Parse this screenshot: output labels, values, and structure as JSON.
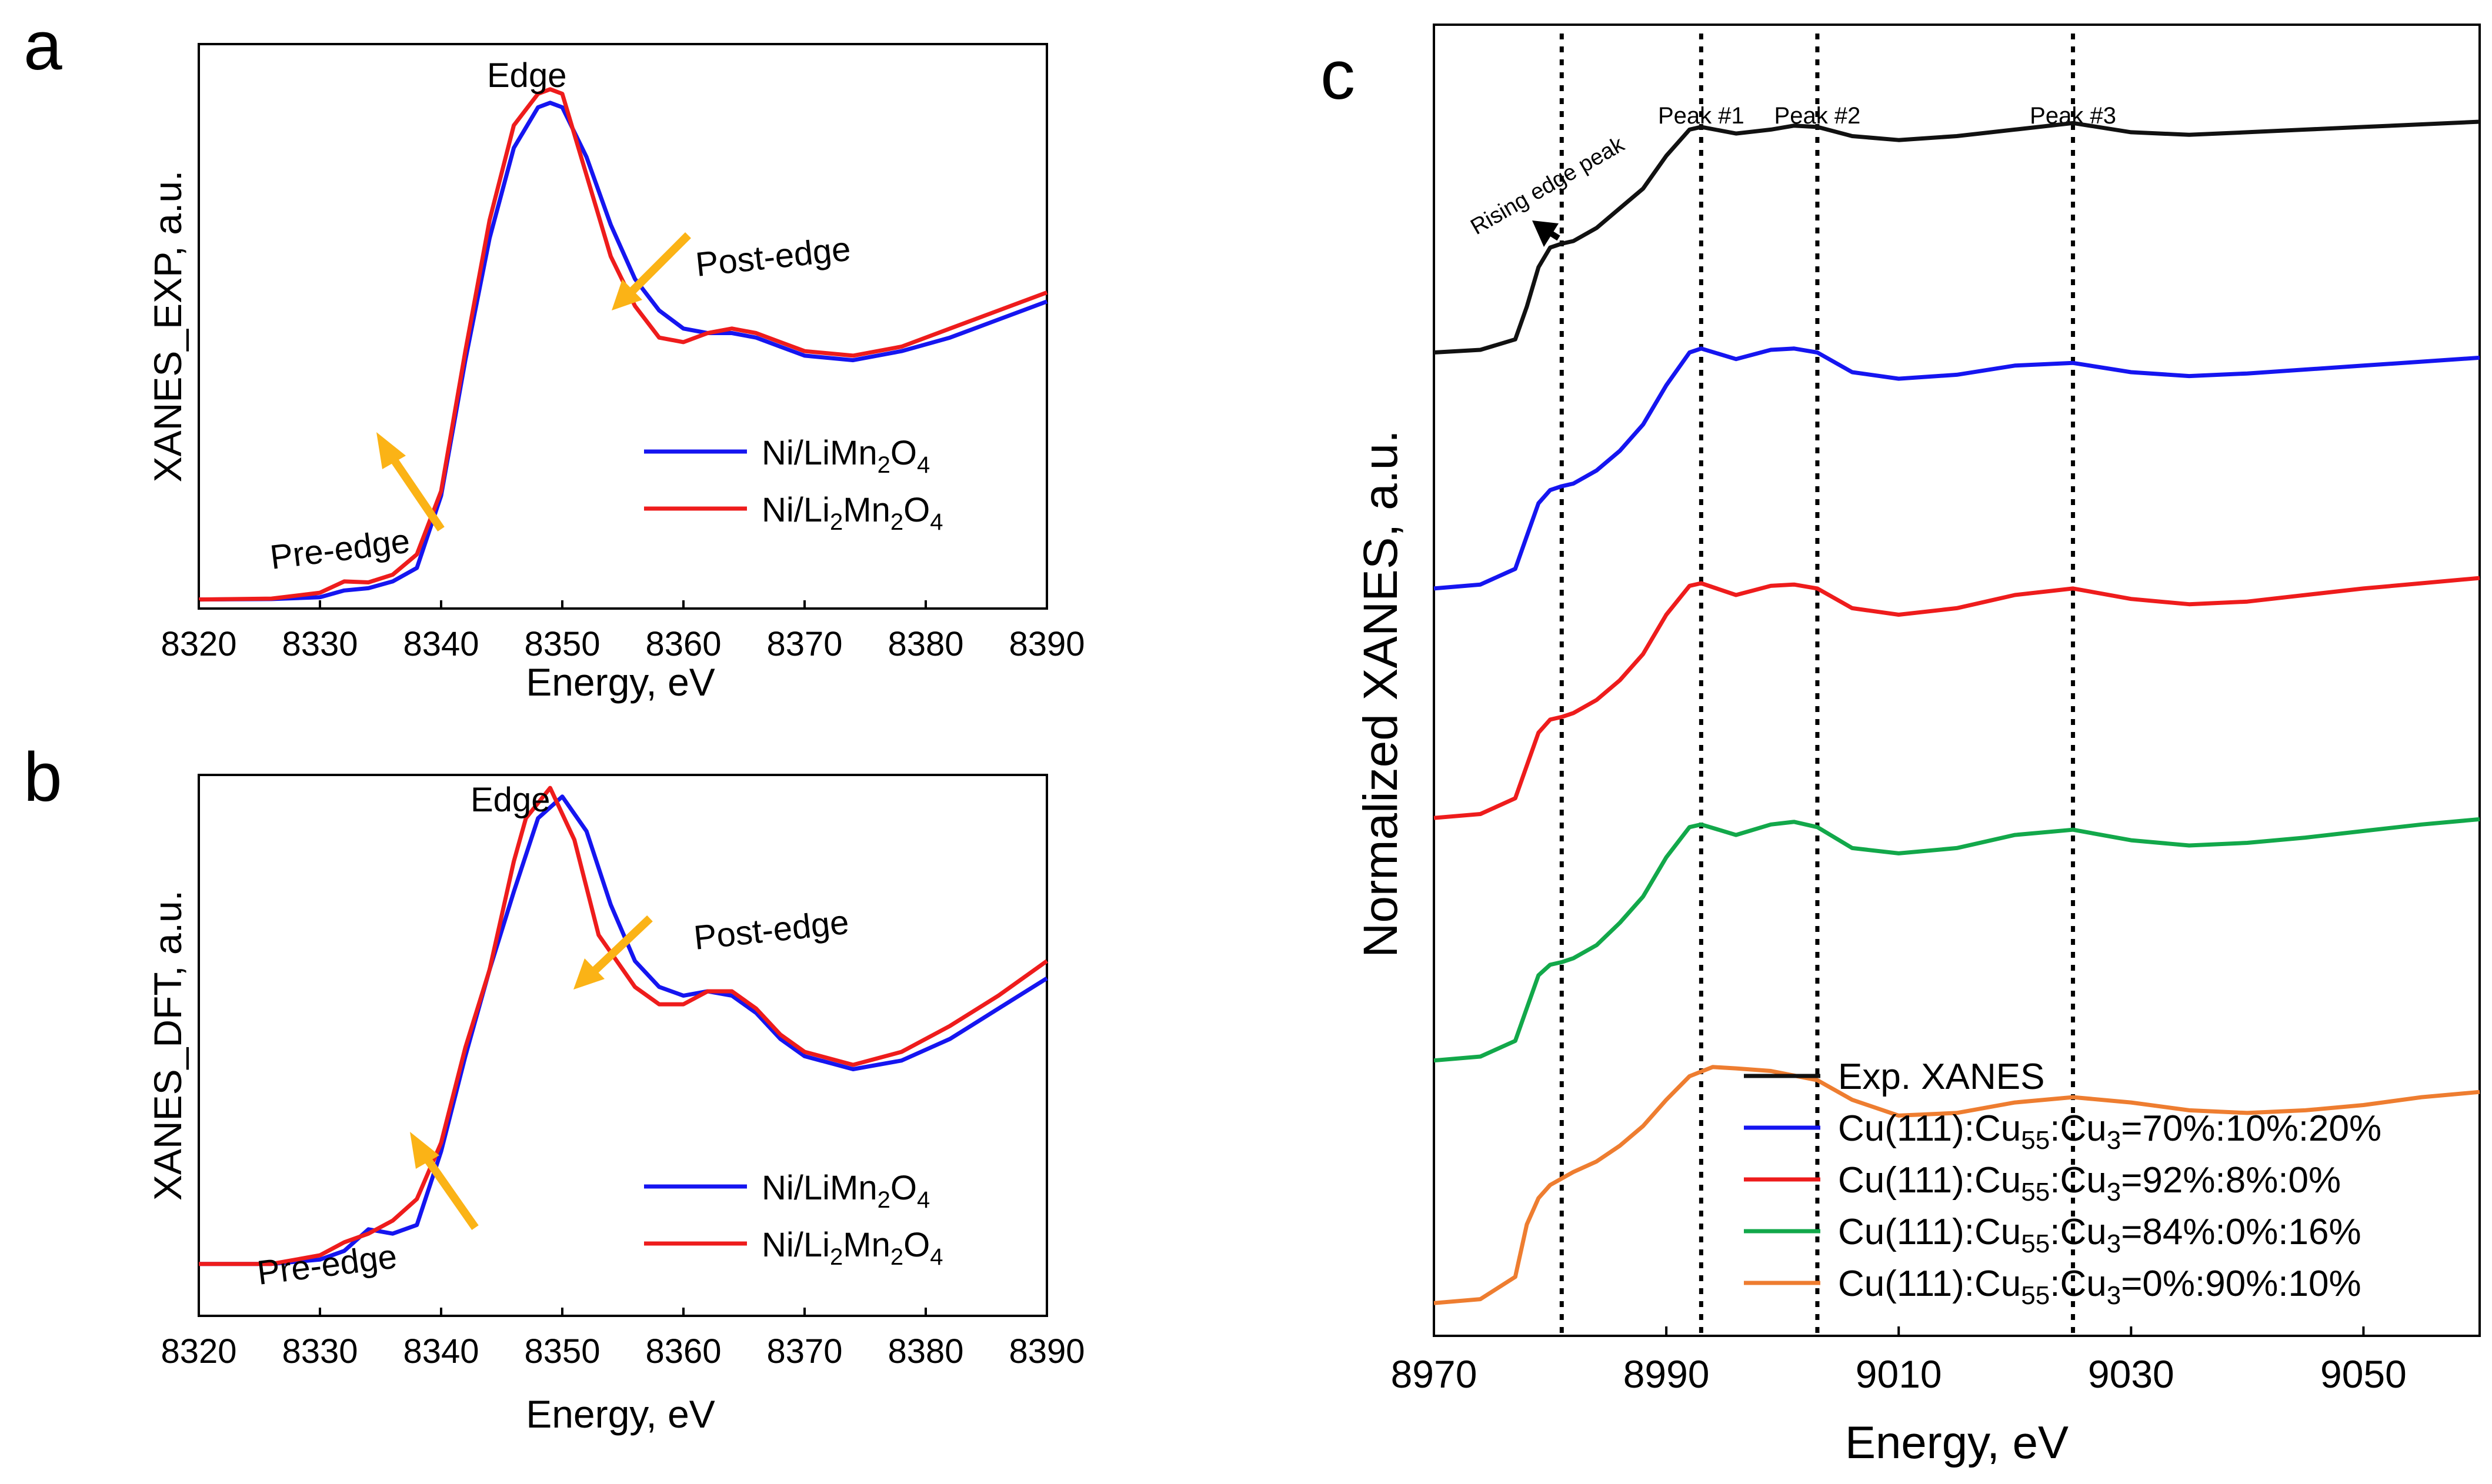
{
  "colors": {
    "blue": "#1515f0",
    "red": "#ee1c1c",
    "black": "#111111",
    "green": "#12a84a",
    "orange": "#ee7d30",
    "arrow": "#fbb316"
  },
  "chart_data": [
    {
      "panel": "a",
      "type": "line",
      "xlabel": "Energy, eV",
      "ylabel": "XANES_EXP, a.u.",
      "xlim": [
        8320,
        8390
      ],
      "ylim": [
        0,
        1.25
      ],
      "xticks": [
        "8320",
        "8330",
        "8340",
        "8350",
        "8360",
        "8370",
        "8380",
        "8390"
      ],
      "annotations": {
        "edge": "Edge",
        "pre_edge": "Pre-edge",
        "post_edge": "Post-edge"
      },
      "legend": [
        {
          "base": "Ni/LiMn",
          "sub1": "2",
          "mid": "O",
          "sub2": "4",
          "color_key": "blue"
        },
        {
          "base": "Ni/Li",
          "sub1": "2",
          "mid": "Mn",
          "sub2": "2",
          "tail": "O",
          "sub3": "4",
          "color_key": "red"
        }
      ],
      "series": [
        {
          "name": "Ni/LiMn2O4",
          "color_key": "blue",
          "x": [
            8320,
            8326,
            8330,
            8332,
            8334,
            8336,
            8338,
            8340,
            8342,
            8344,
            8346,
            8348,
            8349,
            8350,
            8352,
            8354,
            8356,
            8358,
            8360,
            8362,
            8364,
            8366,
            8368,
            8370,
            8374,
            8378,
            8382,
            8386,
            8390
          ],
          "y": [
            0.02,
            0.021,
            0.025,
            0.04,
            0.045,
            0.06,
            0.09,
            0.25,
            0.55,
            0.82,
            1.02,
            1.11,
            1.12,
            1.11,
            1.0,
            0.85,
            0.73,
            0.66,
            0.62,
            0.61,
            0.61,
            0.6,
            0.58,
            0.56,
            0.55,
            0.57,
            0.6,
            0.64,
            0.68
          ]
        },
        {
          "name": "Ni/Li2Mn2O4",
          "color_key": "red",
          "x": [
            8320,
            8326,
            8330,
            8332,
            8334,
            8336,
            8338,
            8340,
            8342,
            8344,
            8346,
            8348,
            8349,
            8350,
            8352,
            8354,
            8356,
            8358,
            8360,
            8362,
            8364,
            8366,
            8368,
            8370,
            8374,
            8378,
            8382,
            8386,
            8390
          ],
          "y": [
            0.02,
            0.022,
            0.035,
            0.06,
            0.058,
            0.075,
            0.12,
            0.26,
            0.57,
            0.86,
            1.07,
            1.14,
            1.15,
            1.14,
            0.96,
            0.78,
            0.67,
            0.6,
            0.59,
            0.61,
            0.62,
            0.61,
            0.59,
            0.57,
            0.56,
            0.58,
            0.62,
            0.66,
            0.7
          ]
        }
      ]
    },
    {
      "panel": "b",
      "type": "line",
      "xlabel": "Energy, eV",
      "ylabel": "XANES_DFT, a.u.",
      "xlim": [
        8320,
        8390
      ],
      "ylim": [
        0,
        1.25
      ],
      "xticks": [
        "8320",
        "8330",
        "8340",
        "8350",
        "8360",
        "8370",
        "8380",
        "8390"
      ],
      "annotations": {
        "edge": "Edge",
        "pre_edge": "Pre-edge",
        "post_edge": "Post-edge"
      },
      "legend": [
        {
          "base": "Ni/LiMn",
          "sub1": "2",
          "mid": "O",
          "sub2": "4",
          "color_key": "blue"
        },
        {
          "base": "Ni/Li",
          "sub1": "2",
          "mid": "Mn",
          "sub2": "2",
          "tail": "O",
          "sub3": "4",
          "color_key": "red"
        }
      ],
      "series": [
        {
          "name": "Ni/LiMn2O4",
          "color_key": "blue",
          "x": [
            8320,
            8326,
            8330,
            8332,
            8334,
            8336,
            8338,
            8340,
            8342,
            8344,
            8346,
            8348,
            8350,
            8352,
            8354,
            8356,
            8358,
            8360,
            8362,
            8364,
            8366,
            8368,
            8370,
            8374,
            8378,
            8382,
            8386,
            8390
          ],
          "y": [
            0.12,
            0.12,
            0.13,
            0.15,
            0.2,
            0.19,
            0.21,
            0.38,
            0.6,
            0.8,
            0.98,
            1.15,
            1.2,
            1.12,
            0.95,
            0.82,
            0.76,
            0.74,
            0.75,
            0.74,
            0.7,
            0.64,
            0.6,
            0.57,
            0.59,
            0.64,
            0.71,
            0.78
          ]
        },
        {
          "name": "Ni/Li2Mn2O4",
          "color_key": "red",
          "x": [
            8320,
            8326,
            8330,
            8332,
            8334,
            8336,
            8338,
            8340,
            8342,
            8344,
            8346,
            8347,
            8349,
            8351,
            8353,
            8356,
            8358,
            8360,
            8362,
            8364,
            8366,
            8368,
            8370,
            8374,
            8378,
            8382,
            8386,
            8390
          ],
          "y": [
            0.12,
            0.12,
            0.14,
            0.17,
            0.19,
            0.22,
            0.27,
            0.4,
            0.62,
            0.8,
            1.05,
            1.15,
            1.22,
            1.1,
            0.88,
            0.76,
            0.72,
            0.72,
            0.75,
            0.75,
            0.71,
            0.65,
            0.61,
            0.58,
            0.61,
            0.67,
            0.74,
            0.82
          ]
        }
      ]
    },
    {
      "panel": "c",
      "type": "line",
      "xlabel": "Energy, eV",
      "ylabel": "Normalized XANES, a.u.",
      "xlim": [
        8970,
        9060
      ],
      "ylim": [
        0,
        10
      ],
      "xticks": [
        "8970",
        "8990",
        "9010",
        "9030",
        "9050"
      ],
      "vlines": [
        {
          "x": 8981,
          "label": ""
        },
        {
          "x": 8993,
          "label": "Peak #1"
        },
        {
          "x": 9003,
          "label": "Peak #2"
        },
        {
          "x": 9025,
          "label": "Peak #3"
        }
      ],
      "rising_edge_label": "Rising edge peak",
      "legend": [
        {
          "text": "Exp. XANES",
          "color_key": "black"
        },
        {
          "base": "Cu(111):Cu",
          "sub1": "55",
          "mid": ":Cu",
          "sub2": "3",
          "tail": "=70%:10%:20%",
          "color_key": "blue"
        },
        {
          "base": "Cu(111):Cu",
          "sub1": "55",
          "mid": ":Cu",
          "sub2": "3",
          "tail": "=92%:8%:0%",
          "color_key": "red"
        },
        {
          "base": "Cu(111):Cu",
          "sub1": "55",
          "mid": ":Cu",
          "sub2": "3",
          "tail": "=84%:0%:16%",
          "color_key": "green"
        },
        {
          "base": "Cu(111):Cu",
          "sub1": "55",
          "mid": ":Cu",
          "sub2": "3",
          "tail": "=0%:90%:10%",
          "color_key": "orange"
        }
      ],
      "series": [
        {
          "name": "Exp. XANES",
          "color_key": "black",
          "x": [
            8970,
            8974,
            8977,
            8978,
            8979,
            8980,
            8981,
            8982,
            8984,
            8986,
            8988,
            8990,
            8992,
            8993,
            8996,
            8999,
            9001,
            9003,
            9006,
            9010,
            9015,
            9020,
            9025,
            9030,
            9035,
            9040,
            9045,
            9050,
            9055,
            9060
          ],
          "y": [
            7.5,
            7.52,
            7.6,
            7.85,
            8.15,
            8.3,
            8.33,
            8.35,
            8.45,
            8.6,
            8.75,
            9.0,
            9.2,
            9.22,
            9.17,
            9.2,
            9.23,
            9.22,
            9.15,
            9.12,
            9.15,
            9.2,
            9.25,
            9.18,
            9.16,
            9.18,
            9.2,
            9.22,
            9.24,
            9.26
          ]
        },
        {
          "name": "Cu(111):Cu55:Cu3=70%:10%:20%",
          "color_key": "blue",
          "x": [
            8970,
            8974,
            8977,
            8978,
            8979,
            8980,
            8981,
            8982,
            8984,
            8986,
            8988,
            8990,
            8992,
            8993,
            8996,
            8999,
            9001,
            9003,
            9006,
            9010,
            9015,
            9020,
            9025,
            9030,
            9035,
            9040,
            9045,
            9050,
            9055,
            9060
          ],
          "y": [
            5.7,
            5.73,
            5.85,
            6.1,
            6.35,
            6.45,
            6.48,
            6.5,
            6.6,
            6.75,
            6.95,
            7.25,
            7.5,
            7.53,
            7.45,
            7.52,
            7.53,
            7.5,
            7.35,
            7.3,
            7.33,
            7.4,
            7.42,
            7.35,
            7.32,
            7.34,
            7.37,
            7.4,
            7.43,
            7.46
          ]
        },
        {
          "name": "Cu(111):Cu55:Cu3=92%:8%:0%",
          "color_key": "red",
          "x": [
            8970,
            8974,
            8977,
            8978,
            8979,
            8980,
            8981,
            8982,
            8984,
            8986,
            8988,
            8990,
            8992,
            8993,
            8996,
            8999,
            9001,
            9003,
            9006,
            9010,
            9015,
            9020,
            9025,
            9030,
            9035,
            9040,
            9045,
            9050,
            9055,
            9060
          ],
          "y": [
            3.95,
            3.98,
            4.1,
            4.35,
            4.6,
            4.7,
            4.72,
            4.75,
            4.85,
            5.0,
            5.2,
            5.5,
            5.72,
            5.74,
            5.65,
            5.72,
            5.73,
            5.7,
            5.55,
            5.5,
            5.55,
            5.65,
            5.7,
            5.62,
            5.58,
            5.6,
            5.65,
            5.7,
            5.74,
            5.78
          ]
        },
        {
          "name": "Cu(111):Cu55:Cu3=84%:0%:16%",
          "color_key": "green",
          "x": [
            8970,
            8974,
            8977,
            8978,
            8979,
            8980,
            8981,
            8982,
            8984,
            8986,
            8988,
            8990,
            8992,
            8993,
            8996,
            8999,
            9001,
            9003,
            9006,
            9010,
            9015,
            9020,
            9025,
            9030,
            9035,
            9040,
            9045,
            9050,
            9055,
            9060
          ],
          "y": [
            2.1,
            2.13,
            2.25,
            2.5,
            2.75,
            2.83,
            2.85,
            2.88,
            2.98,
            3.15,
            3.35,
            3.65,
            3.88,
            3.9,
            3.82,
            3.9,
            3.92,
            3.88,
            3.72,
            3.68,
            3.72,
            3.82,
            3.86,
            3.78,
            3.74,
            3.76,
            3.8,
            3.85,
            3.9,
            3.94
          ]
        },
        {
          "name": "Cu(111):Cu55:Cu3=0%:90%:10%",
          "color_key": "orange",
          "x": [
            8970,
            8974,
            8977,
            8978,
            8979,
            8980,
            8981,
            8982,
            8984,
            8986,
            8988,
            8990,
            8992,
            8994,
            8996,
            8999,
            9003,
            9006,
            9010,
            9015,
            9020,
            9025,
            9030,
            9035,
            9040,
            9045,
            9050,
            9055,
            9060
          ],
          "y": [
            0.25,
            0.28,
            0.45,
            0.85,
            1.05,
            1.15,
            1.2,
            1.25,
            1.33,
            1.45,
            1.6,
            1.8,
            1.98,
            2.05,
            2.04,
            2.02,
            1.95,
            1.8,
            1.68,
            1.7,
            1.78,
            1.82,
            1.78,
            1.72,
            1.7,
            1.72,
            1.76,
            1.82,
            1.86
          ]
        }
      ]
    }
  ],
  "panel_letters": [
    "a",
    "b",
    "c"
  ]
}
